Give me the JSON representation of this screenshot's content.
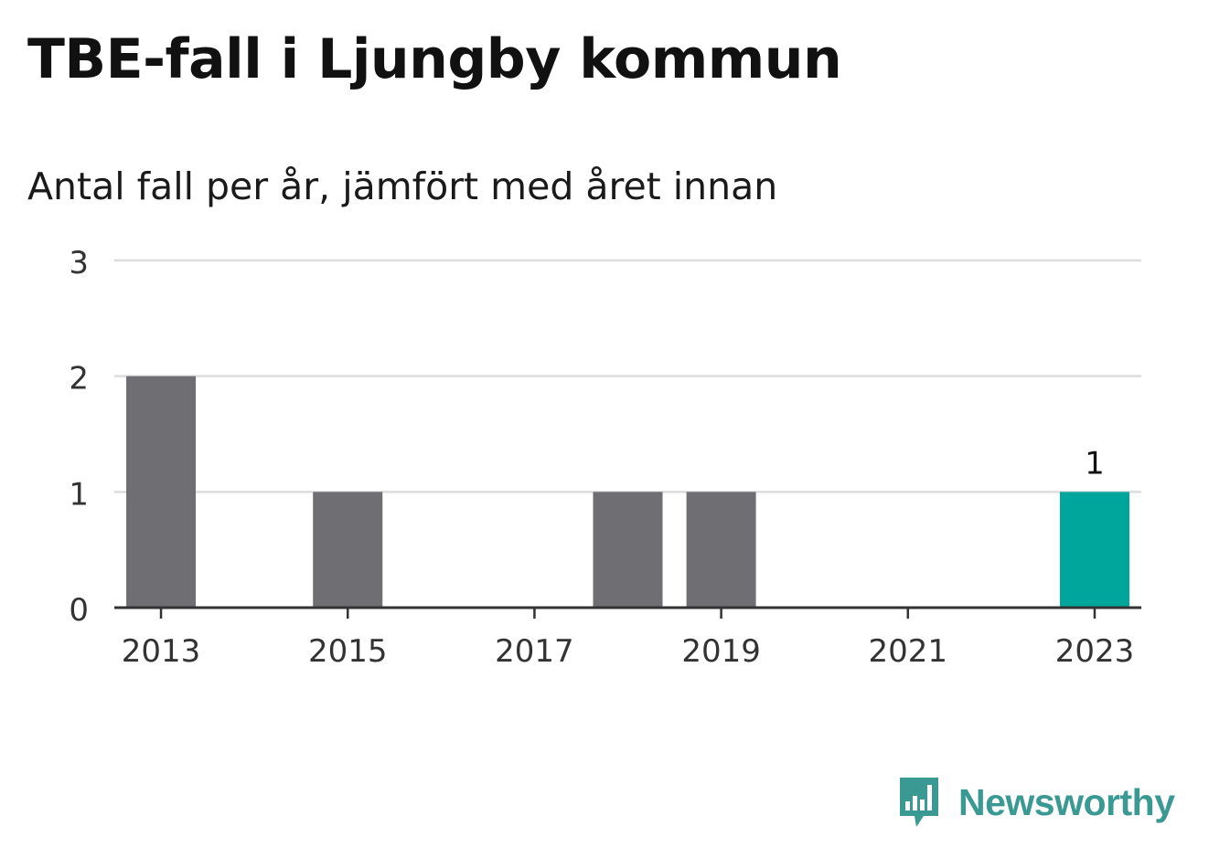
{
  "header": {
    "title": "TBE-fall i Ljungby kommun",
    "subtitle": "Antal fall per år, jämfört med året innan"
  },
  "brand": {
    "name": "Newsworthy",
    "color": "#3a9a93"
  },
  "chart_data": {
    "type": "bar",
    "title": "TBE-fall i Ljungby kommun",
    "subtitle": "Antal fall per år, jämfört med året innan",
    "xlabel": "",
    "ylabel": "",
    "categories": [
      "2013",
      "2014",
      "2015",
      "2016",
      "2017",
      "2018",
      "2019",
      "2020",
      "2021",
      "2022",
      "2023"
    ],
    "values": [
      2,
      0,
      1,
      0,
      0,
      1,
      1,
      0,
      0,
      0,
      1
    ],
    "x_tick_labels": [
      "2013",
      "2015",
      "2017",
      "2019",
      "2021",
      "2023"
    ],
    "y_ticks": [
      0,
      1,
      2,
      3
    ],
    "ylim": [
      0,
      3
    ],
    "grid": true,
    "highlight_category": "2023",
    "highlight_label": "1",
    "colors": {
      "bar": "#6f6e73",
      "highlight": "#00a59b",
      "grid": "#dddddd",
      "axis": "#333333"
    }
  }
}
